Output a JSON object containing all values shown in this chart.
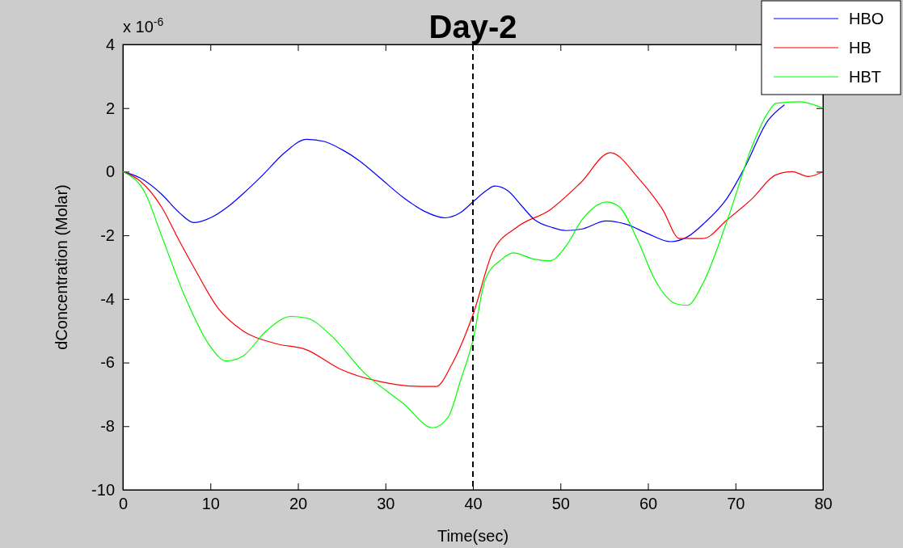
{
  "chart_data": {
    "type": "line",
    "title": "Day-2",
    "xlabel": "Time(sec)",
    "ylabel": "dConcentration (Molar)",
    "annotations": [
      "x 10$^{-6}$"
    ],
    "xlim": [
      0,
      80
    ],
    "xticks": [
      0,
      10,
      20,
      30,
      40,
      50,
      60,
      70,
      80
    ],
    "ylim": [
      -10,
      4
    ],
    "yticks": [
      -10,
      -8,
      -6,
      -4,
      -2,
      0,
      2,
      4
    ],
    "grid": false,
    "legend": "top right",
    "marker": "none",
    "line_style": "solid",
    "ref_lines": [
      {
        "axis": "x",
        "value": 40,
        "color": "#000000",
        "line_style": "dashed"
      }
    ],
    "series": [
      {
        "name": "HBO",
        "color": "#0000ff",
        "x": [
          0,
          2,
          4.4,
          6.5,
          8.1,
          10,
          12,
          13.7,
          16,
          18.5,
          21,
          23,
          25,
          27,
          29.4,
          32,
          34.5,
          36.8,
          38.5,
          40,
          41.5,
          42.5,
          44,
          45.5,
          47,
          49,
          50.6,
          52.5,
          55.2,
          57.5,
          60,
          62.6,
          64.5,
          66.5,
          69,
          71,
          73.7,
          75.6
        ],
        "values": [
          0,
          -0.2,
          -0.7,
          -1.3,
          -1.6,
          -1.45,
          -1.1,
          -0.7,
          -0.1,
          0.6,
          1.02,
          0.95,
          0.7,
          0.35,
          -0.2,
          -0.8,
          -1.25,
          -1.45,
          -1.3,
          -0.95,
          -0.6,
          -0.45,
          -0.6,
          -1.05,
          -1.5,
          -1.75,
          -1.85,
          -1.8,
          -1.55,
          -1.65,
          -1.95,
          -2.2,
          -2.05,
          -1.6,
          -0.85,
          0.1,
          1.6,
          2.1
        ]
      },
      {
        "name": "HB",
        "color": "#ff0000",
        "x": [
          0,
          2,
          4.4,
          6.5,
          8.1,
          10.9,
          13.7,
          17.4,
          21,
          24.8,
          29.4,
          34,
          35.8,
          37.6,
          40,
          42.3,
          45,
          48.8,
          52.3,
          55.7,
          58.9,
          61.7,
          63.6,
          66.3,
          69.1,
          71.9,
          74.6,
          76.5,
          78.3,
          80
        ],
        "values": [
          0,
          -0.3,
          -1.1,
          -2.2,
          -3,
          -4.3,
          -5,
          -5.4,
          -5.6,
          -6.2,
          -6.6,
          -6.75,
          -6.75,
          -6.05,
          -4.5,
          -2.5,
          -1.75,
          -1.2,
          -0.35,
          0.6,
          -0.2,
          -1.2,
          -2.1,
          -2.1,
          -1.5,
          -0.85,
          -0.1,
          0,
          -0.15,
          0
        ]
      },
      {
        "name": "HBT",
        "color": "#00ff00",
        "x": [
          0,
          2.6,
          4.4,
          7.2,
          10,
          11.8,
          13.7,
          16.4,
          19.2,
          21,
          23.8,
          27.5,
          32.1,
          35.4,
          37.2,
          38.6,
          40,
          41.4,
          43.3,
          44.6,
          47,
          48.8,
          50.6,
          52.5,
          55.3,
          56.7,
          58.9,
          60.8,
          63.2,
          64.5,
          66.3,
          69.1,
          71.9,
          73.7,
          74.6,
          77.3,
          80
        ],
        "values": [
          0,
          -0.7,
          -2,
          -4,
          -5.5,
          -5.95,
          -5.8,
          -5,
          -4.55,
          -4.6,
          -5.15,
          -6.3,
          -7.3,
          -8.05,
          -7.7,
          -6.55,
          -5.3,
          -3.4,
          -2.75,
          -2.55,
          -2.75,
          -2.8,
          -2.35,
          -1.5,
          -0.95,
          -1.1,
          -2.2,
          -3.4,
          -4.15,
          -4.2,
          -3.5,
          -1.5,
          0.8,
          1.85,
          2.15,
          2.2,
          2
        ]
      }
    ]
  }
}
